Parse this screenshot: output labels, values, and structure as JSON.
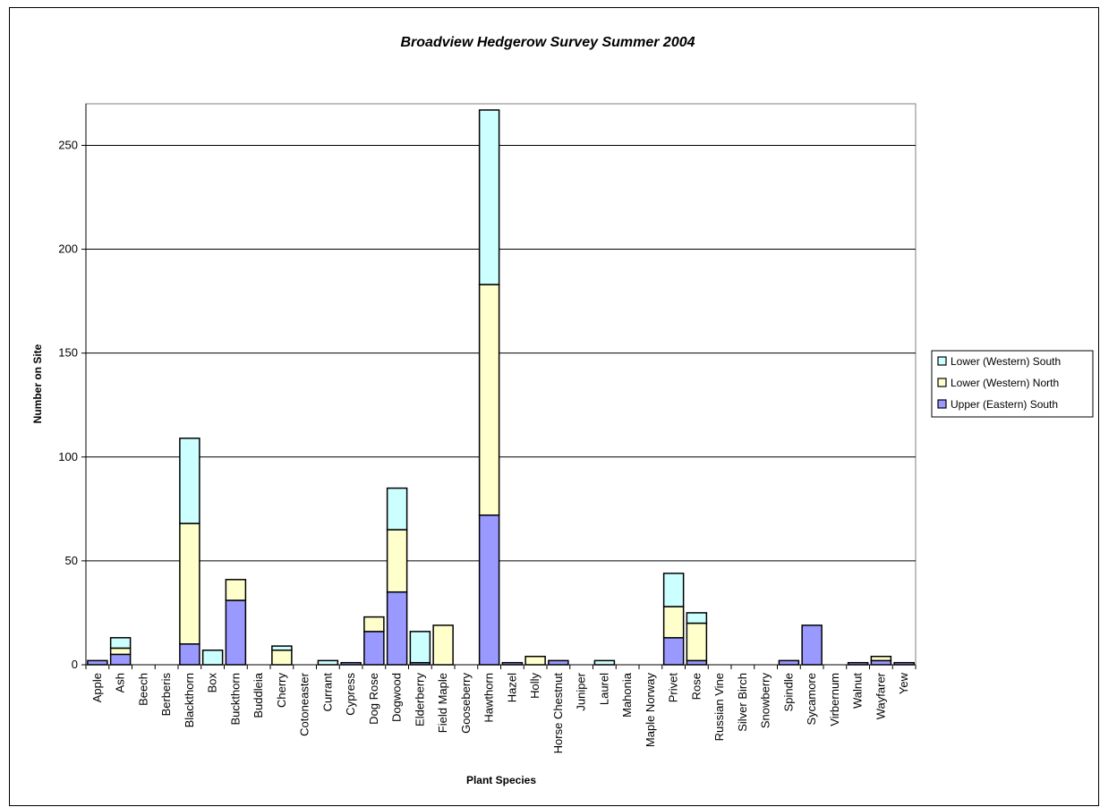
{
  "chart_data": {
    "type": "bar",
    "stacked": true,
    "title": "Broadview Hedgerow Survey Summer 2004",
    "xlabel": "Plant Species",
    "ylabel": "Number on Site",
    "ylim": [
      0,
      270
    ],
    "yticks": [
      0,
      50,
      100,
      150,
      200,
      250
    ],
    "grid": true,
    "legend_position": "right",
    "categories": [
      "Apple",
      "Ash",
      "Beech",
      "Berberis",
      "Blackthorn",
      "Box",
      "Buckthorn",
      "Buddleia",
      "Cherry",
      "Cotoneaster",
      "Currant",
      "Cypress",
      "Dog Rose",
      "Dogwood",
      "Elderberry",
      "Field Maple",
      "Gooseberry",
      "Hawthorn",
      "Hazel",
      "Holly",
      "Horse Chestnut",
      "Juniper",
      "Laurel",
      "Mahonia",
      "Maple Norway",
      "Privet",
      "Rose",
      "Russian Vine",
      "Silver Birch",
      "Snowberry",
      "Spindle",
      "Sycamore",
      "Virbernum",
      "Walnut",
      "Wayfarer",
      "Yew"
    ],
    "series": [
      {
        "name": "Upper (Eastern) South",
        "color": "#9999ff",
        "values": [
          2,
          5,
          0,
          0,
          10,
          0,
          31,
          0,
          0,
          0,
          0,
          1,
          16,
          35,
          1,
          0,
          0,
          72,
          1,
          0,
          2,
          0,
          0,
          0,
          0,
          13,
          2,
          0,
          0,
          0,
          2,
          19,
          0,
          1,
          2,
          1
        ]
      },
      {
        "name": "Lower (Western) North",
        "color": "#ffffcc",
        "values": [
          0,
          3,
          0,
          0,
          58,
          0,
          10,
          0,
          7,
          0,
          0,
          0,
          7,
          30,
          0,
          19,
          0,
          111,
          0,
          4,
          0,
          0,
          0,
          0,
          0,
          15,
          18,
          0,
          0,
          0,
          0,
          0,
          0,
          0,
          2,
          0
        ]
      },
      {
        "name": "Lower (Western) South",
        "color": "#ccffff",
        "values": [
          0,
          5,
          0,
          0,
          41,
          7,
          0,
          0,
          2,
          0,
          2,
          0,
          0,
          20,
          15,
          0,
          0,
          84,
          0,
          0,
          0,
          0,
          2,
          0,
          0,
          16,
          5,
          0,
          0,
          0,
          0,
          0,
          0,
          0,
          0,
          0
        ]
      }
    ],
    "legend_order": [
      "Lower (Western) South",
      "Lower (Western) North",
      "Upper (Eastern) South"
    ]
  }
}
